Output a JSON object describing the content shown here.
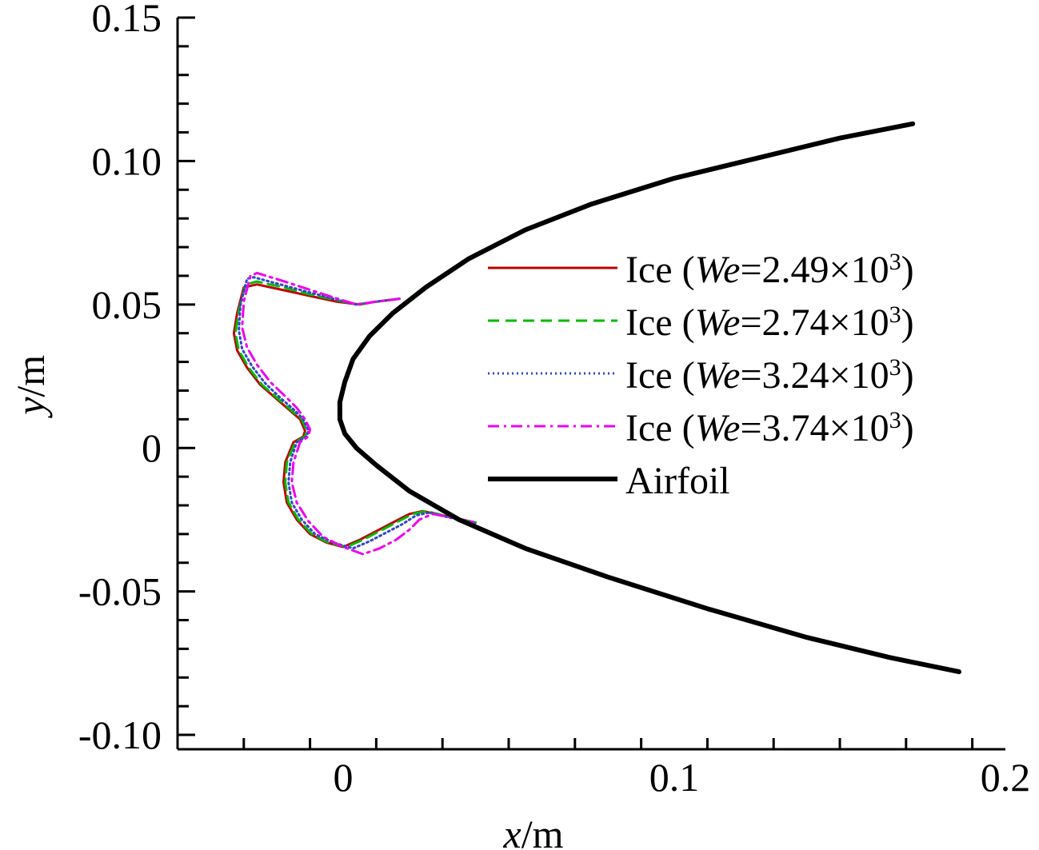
{
  "chart_data": {
    "type": "line",
    "xlabel": {
      "var": "x",
      "unit": "/m"
    },
    "ylabel": {
      "var": "y",
      "unit": "/m"
    },
    "xlim": [
      -0.05,
      0.2
    ],
    "ylim": [
      -0.105,
      0.15
    ],
    "x_ticks": [
      {
        "value": 0,
        "label": "0"
      },
      {
        "value": 0.1,
        "label": "0.1"
      },
      {
        "value": 0.2,
        "label": "0.2"
      }
    ],
    "y_ticks": [
      {
        "value": 0.15,
        "label": "0.15"
      },
      {
        "value": 0.1,
        "label": "0.10"
      },
      {
        "value": 0.05,
        "label": "0.05"
      },
      {
        "value": 0,
        "label": "0"
      },
      {
        "value": -0.05,
        "label": "-0.05"
      },
      {
        "value": -0.1,
        "label": "-0.10"
      }
    ],
    "x_minor_step": 0.02,
    "y_minor_step": 0.01,
    "grid": false,
    "legend_position": "center-right",
    "series": [
      {
        "name": "Ice (We=2.49×10³)",
        "label_prefix": "Ice (",
        "label_italic": "We",
        "label_value": "=2.49×10",
        "label_sup": "3",
        "label_suffix": ")",
        "color": "#c00000",
        "dash": "solid",
        "width": 3,
        "x": [
          0.017,
          0.01,
          0.005,
          -0.002,
          -0.01,
          -0.018,
          -0.026,
          -0.03,
          -0.032,
          -0.033,
          -0.032,
          -0.029,
          -0.025,
          -0.02,
          -0.016,
          -0.013,
          -0.0115,
          -0.012,
          -0.015,
          -0.0175,
          -0.018,
          -0.017,
          -0.014,
          -0.01,
          -0.005,
          0.0,
          0.005,
          0.01,
          0.015,
          0.02,
          0.024,
          0.032,
          0.04
        ],
        "y": [
          0.052,
          0.051,
          0.05,
          0.051,
          0.053,
          0.055,
          0.057,
          0.056,
          0.047,
          0.04,
          0.034,
          0.028,
          0.022,
          0.017,
          0.013,
          0.01,
          0.006,
          0.004,
          0.002,
          -0.005,
          -0.012,
          -0.019,
          -0.025,
          -0.03,
          -0.033,
          -0.0345,
          -0.032,
          -0.029,
          -0.026,
          -0.023,
          -0.022,
          -0.024,
          -0.026
        ]
      },
      {
        "name": "Ice (We=2.74×10³)",
        "label_prefix": "Ice (",
        "label_italic": "We",
        "label_value": "=2.74×10",
        "label_sup": "3",
        "label_suffix": ")",
        "color": "#00bb00",
        "dash": "dashed",
        "width": 3,
        "x": [
          0.017,
          0.01,
          0.004,
          -0.002,
          -0.01,
          -0.018,
          -0.026,
          -0.0295,
          -0.0315,
          -0.0325,
          -0.0315,
          -0.0285,
          -0.0245,
          -0.0195,
          -0.0155,
          -0.0125,
          -0.011,
          -0.0115,
          -0.0145,
          -0.017,
          -0.0175,
          -0.0165,
          -0.0135,
          -0.0095,
          -0.0045,
          0.001,
          0.006,
          0.011,
          0.016,
          0.021,
          0.025,
          0.032,
          0.04
        ],
        "y": [
          0.052,
          0.051,
          0.05,
          0.0515,
          0.0535,
          0.056,
          0.058,
          0.057,
          0.048,
          0.04,
          0.034,
          0.028,
          0.022,
          0.017,
          0.013,
          0.01,
          0.006,
          0.004,
          0.002,
          -0.005,
          -0.012,
          -0.019,
          -0.025,
          -0.03,
          -0.033,
          -0.0345,
          -0.032,
          -0.029,
          -0.026,
          -0.023,
          -0.022,
          -0.024,
          -0.026
        ]
      },
      {
        "name": "Ice (We=3.24×10³)",
        "label_prefix": "Ice (",
        "label_italic": "We",
        "label_value": "=3.24×10",
        "label_sup": "3",
        "label_suffix": ")",
        "color": "#3344cc",
        "dash": "dotted",
        "width": 3,
        "x": [
          0.017,
          0.01,
          0.004,
          -0.003,
          -0.011,
          -0.019,
          -0.027,
          -0.029,
          -0.031,
          -0.0315,
          -0.0305,
          -0.0275,
          -0.0235,
          -0.019,
          -0.015,
          -0.012,
          -0.0105,
          -0.011,
          -0.014,
          -0.016,
          -0.0165,
          -0.0155,
          -0.0125,
          -0.0085,
          -0.003,
          0.003,
          0.008,
          0.013,
          0.018,
          0.022,
          0.026,
          0.033,
          0.04
        ],
        "y": [
          0.052,
          0.051,
          0.05,
          0.052,
          0.0545,
          0.057,
          0.0595,
          0.059,
          0.05,
          0.041,
          0.0345,
          0.0285,
          0.0225,
          0.0175,
          0.0135,
          0.01,
          0.006,
          0.004,
          0.002,
          -0.005,
          -0.012,
          -0.019,
          -0.025,
          -0.03,
          -0.033,
          -0.035,
          -0.0325,
          -0.0295,
          -0.0265,
          -0.0235,
          -0.0225,
          -0.0245,
          -0.0265
        ]
      },
      {
        "name": "Ice (We=3.74×10³)",
        "label_prefix": "Ice (",
        "label_italic": "We",
        "label_value": "=3.74×10",
        "label_sup": "3",
        "label_suffix": ")",
        "color": "#ee00ee",
        "dash": "dashdot",
        "width": 3,
        "x": [
          0.017,
          0.01,
          0.004,
          -0.003,
          -0.011,
          -0.019,
          -0.026,
          -0.028,
          -0.03,
          -0.0305,
          -0.029,
          -0.026,
          -0.022,
          -0.0175,
          -0.014,
          -0.0115,
          -0.01,
          -0.0105,
          -0.013,
          -0.015,
          -0.0155,
          -0.014,
          -0.0105,
          -0.006,
          0.0,
          0.006,
          0.011,
          0.016,
          0.02,
          0.023,
          0.027,
          0.034,
          0.04
        ],
        "y": [
          0.052,
          0.051,
          0.05,
          0.0525,
          0.0555,
          0.0585,
          0.061,
          0.06,
          0.051,
          0.042,
          0.035,
          0.029,
          0.023,
          0.018,
          0.014,
          0.01,
          0.0065,
          0.004,
          0.002,
          -0.005,
          -0.012,
          -0.019,
          -0.0255,
          -0.031,
          -0.0345,
          -0.037,
          -0.035,
          -0.032,
          -0.0285,
          -0.025,
          -0.023,
          -0.0245,
          -0.026
        ]
      },
      {
        "name": "Airfoil",
        "label_prefix": "Airfoil",
        "label_italic": "",
        "label_value": "",
        "label_sup": "",
        "label_suffix": "",
        "color": "#000000",
        "dash": "solid",
        "width": 6,
        "x": [
          0.172,
          0.15,
          0.125,
          0.1,
          0.075,
          0.055,
          0.038,
          0.025,
          0.015,
          0.008,
          0.003,
          0.0005,
          -0.001,
          -0.001,
          0.0005,
          0.004,
          0.01,
          0.02,
          0.035,
          0.055,
          0.08,
          0.11,
          0.14,
          0.165,
          0.186
        ],
        "y": [
          0.113,
          0.108,
          0.101,
          0.094,
          0.085,
          0.076,
          0.066,
          0.056,
          0.047,
          0.039,
          0.031,
          0.023,
          0.016,
          0.01,
          0.005,
          0.0,
          -0.006,
          -0.015,
          -0.025,
          -0.035,
          -0.045,
          -0.056,
          -0.066,
          -0.073,
          -0.078
        ]
      }
    ]
  }
}
